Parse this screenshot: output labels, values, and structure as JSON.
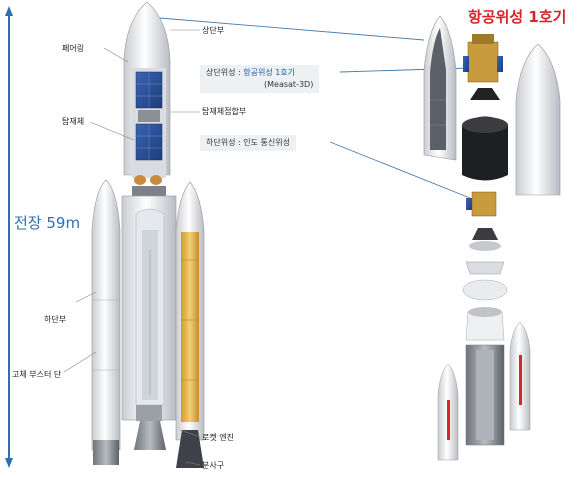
{
  "title": "항공위성 1호기",
  "total_height": "전장 59m",
  "labels": {
    "fairing": "페어링",
    "upper_stage": "상단부",
    "payload_adapter": "탑재체접합부",
    "payload": "탑재체",
    "lower_stage": "하단부",
    "solid_booster": "고체 부스터 단",
    "rocket_engine": "로켓 엔진",
    "nozzle": "분사구"
  },
  "callouts": {
    "upper_satellite_prefix": "상단위성 : ",
    "upper_satellite_name": "항공위성 1호기",
    "upper_satellite_alias": "(Measat-3D)",
    "lower_satellite": "하단위성 : 인도 통신위성"
  },
  "colors": {
    "title": "#d9242b",
    "height_arrow": "#2d6fb5",
    "solar_panel": "#2a4f9a",
    "fuel_tank": "#e8b84a",
    "leader_line": "#4a7bb0"
  }
}
